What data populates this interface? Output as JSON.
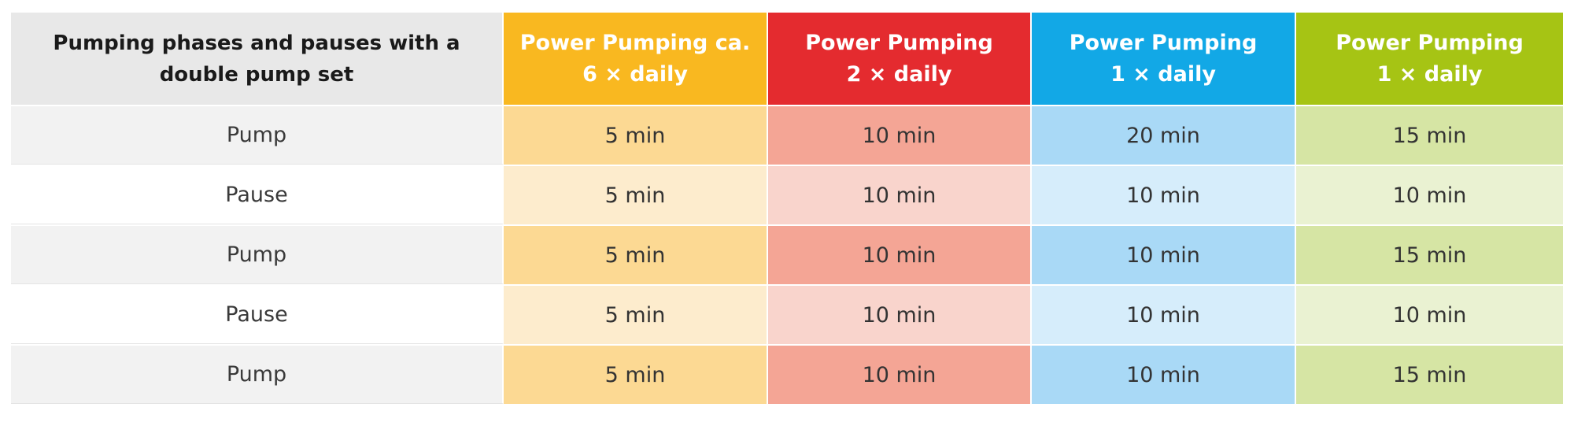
{
  "table": {
    "row_header": {
      "line1": "Pumping phases and pauses with a",
      "line2": "double pump set"
    },
    "columns": [
      {
        "line1": "Power Pumping ca.",
        "line2": "6 × daily",
        "color": "#f9b820",
        "strong_bg": "#fcd993",
        "light_bg": "#fdeccd"
      },
      {
        "line1": "Power Pumping",
        "line2": "2 × daily",
        "color": "#e42b2f",
        "strong_bg": "#f4a595",
        "light_bg": "#f9d4cc"
      },
      {
        "line1": "Power Pumping",
        "line2": "1 × daily",
        "color": "#12a8e6",
        "strong_bg": "#a9d9f6",
        "light_bg": "#d6edfb"
      },
      {
        "line1": "Power Pumping",
        "line2": "1 × daily",
        "color": "#a6c414",
        "strong_bg": "#d6e5a4",
        "light_bg": "#eaf2d2"
      }
    ],
    "rows": [
      {
        "label": "Pump",
        "values": [
          "5 min",
          "10 min",
          "20 min",
          "15 min"
        ]
      },
      {
        "label": "Pause",
        "values": [
          "5 min",
          "10 min",
          "10 min",
          "10 min"
        ]
      },
      {
        "label": "Pump",
        "values": [
          "5 min",
          "10 min",
          "10 min",
          "15 min"
        ]
      },
      {
        "label": "Pause",
        "values": [
          "5 min",
          "10 min",
          "10 min",
          "10 min"
        ]
      },
      {
        "label": "Pump",
        "values": [
          "5 min",
          "10 min",
          "10 min",
          "15 min"
        ]
      }
    ]
  }
}
